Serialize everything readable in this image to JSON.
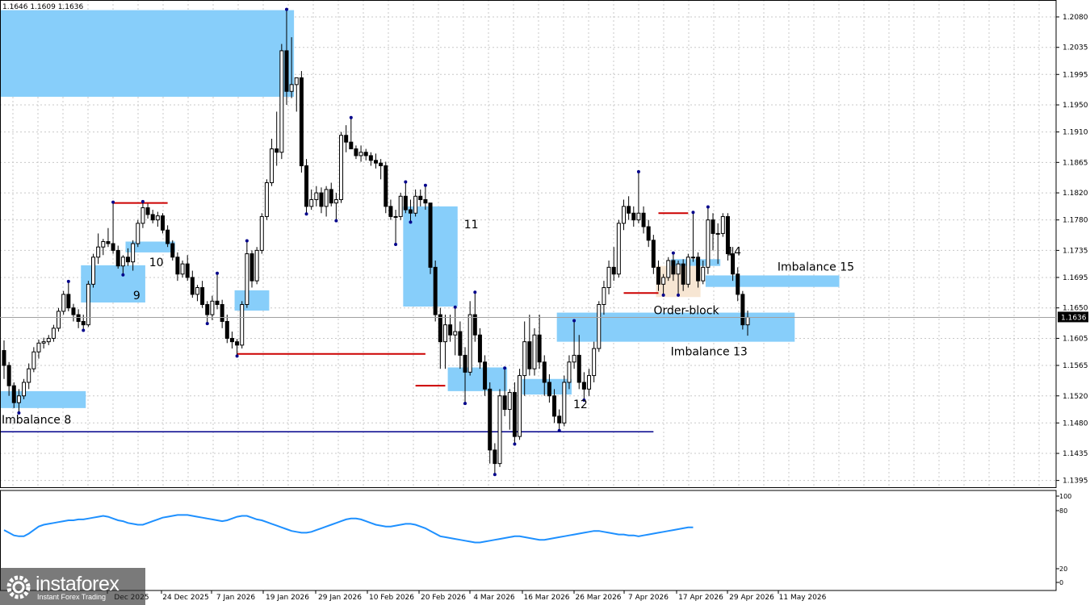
{
  "header": {
    "ohlc": "1.1646 1.1609 1.1636"
  },
  "logo": {
    "brand": "instaforex",
    "tagline": "Instant Forex Trading"
  },
  "colors": {
    "zone": "#87cefa",
    "order_block": "#f7e6d3",
    "level_red": "#cc0000",
    "level_blue": "#00008b",
    "indicator": "#1e90ff",
    "grid": "#c8c8c8"
  },
  "chart_data": {
    "type": "candlestick",
    "price_axis": {
      "ticks": [
        "1.2080",
        "1.2035",
        "1.1995",
        "1.1950",
        "1.1910",
        "1.1865",
        "1.1820",
        "1.1780",
        "1.1735",
        "1.1695",
        "1.1650",
        "1.1605",
        "1.1565",
        "1.1520",
        "1.1480",
        "1.1435",
        "1.1395"
      ],
      "current_price": "1.1636",
      "range": [
        1.1385,
        1.2105
      ]
    },
    "time_axis": {
      "ticks": [
        "Dec 2025",
        "24 Dec 2025",
        "7 Jan 2026",
        "19 Jan 2026",
        "29 Jan 2026",
        "10 Feb 2026",
        "20 Feb 2026",
        "4 Mar 2026",
        "16 Mar 2026",
        "26 Mar 2026",
        "7 Apr 2026",
        "17 Apr 2026",
        "29 Apr 2026",
        "11 May 2026"
      ]
    },
    "indicator_axis": {
      "ticks": [
        "100",
        "80",
        "20",
        "0"
      ],
      "range": [
        0,
        100
      ]
    },
    "zones": [
      {
        "label": "",
        "from": 0,
        "to": 58,
        "top": 1.209,
        "bottom": 1.1962,
        "kind": "zone"
      },
      {
        "label": "Imbalance 8",
        "from": 0,
        "to": 16,
        "top": 1.1527,
        "bottom": 1.1502,
        "kind": "zone"
      },
      {
        "label": "9",
        "from": 16,
        "to": 28,
        "top": 1.1713,
        "bottom": 1.1658,
        "kind": "zone"
      },
      {
        "label": "10",
        "from": 25,
        "to": 34,
        "top": 1.1748,
        "bottom": 1.1732,
        "kind": "zone"
      },
      {
        "label": "",
        "from": 47,
        "to": 53,
        "top": 1.1676,
        "bottom": 1.1646,
        "kind": "zone"
      },
      {
        "label": "11",
        "from": 81,
        "to": 91,
        "top": 1.18,
        "bottom": 1.1652,
        "kind": "zone"
      },
      {
        "label": "",
        "from": 90,
        "to": 101,
        "top": 1.1562,
        "bottom": 1.1527,
        "kind": "zone"
      },
      {
        "label": "12",
        "from": 105,
        "to": 114,
        "top": 1.1545,
        "bottom": 1.1522,
        "kind": "zone"
      },
      {
        "label": "Imbalance 13",
        "from": 112,
        "to": 159,
        "top": 1.1643,
        "bottom": 1.16,
        "kind": "zone"
      },
      {
        "label": "14",
        "from": 135,
        "to": 144,
        "top": 1.1722,
        "bottom": 1.1712,
        "kind": "zone"
      },
      {
        "label": "Imbalance 15",
        "from": 142,
        "to": 168,
        "top": 1.1698,
        "bottom": 1.1681,
        "kind": "zone"
      },
      {
        "label": "Order-block",
        "from": 132,
        "to": 140,
        "top": 1.1712,
        "bottom": 1.1666,
        "kind": "order_block"
      }
    ],
    "levels": [
      {
        "from": 22,
        "to": 33,
        "price": 1.1805,
        "color": "red"
      },
      {
        "from": 47,
        "to": 85,
        "price": 1.1582,
        "color": "red"
      },
      {
        "from": 83,
        "to": 89,
        "price": 1.1535,
        "color": "red"
      },
      {
        "from": 125,
        "to": 132,
        "price": 1.1672,
        "color": "red"
      },
      {
        "from": 132,
        "to": 138,
        "price": 1.179,
        "color": "red"
      },
      {
        "from": 0,
        "to": 131,
        "price": 1.1467,
        "color": "blue"
      }
    ],
    "candles": [
      [
        1.1587,
        1.1602,
        1.1545,
        1.1565
      ],
      [
        1.1565,
        1.157,
        1.152,
        1.1535
      ],
      [
        1.1535,
        1.154,
        1.1502,
        1.151
      ],
      [
        1.151,
        1.153,
        1.1496,
        1.152
      ],
      [
        1.152,
        1.1545,
        1.1515,
        1.154
      ],
      [
        1.154,
        1.1568,
        1.153,
        1.156
      ],
      [
        1.156,
        1.1592,
        1.1555,
        1.1585
      ],
      [
        1.1585,
        1.1603,
        1.1575,
        1.1598
      ],
      [
        1.1598,
        1.1606,
        1.159,
        1.16
      ],
      [
        1.16,
        1.161,
        1.1595,
        1.1605
      ],
      [
        1.1605,
        1.1625,
        1.16,
        1.162
      ],
      [
        1.162,
        1.165,
        1.1615,
        1.1645
      ],
      [
        1.1645,
        1.1675,
        1.164,
        1.167
      ],
      [
        1.167,
        1.1688,
        1.1645,
        1.165
      ],
      [
        1.165,
        1.1656,
        1.163,
        1.164
      ],
      [
        1.164,
        1.1648,
        1.162,
        1.163
      ],
      [
        1.163,
        1.164,
        1.1618,
        1.1625
      ],
      [
        1.1625,
        1.169,
        1.1622,
        1.1685
      ],
      [
        1.1685,
        1.173,
        1.168,
        1.1725
      ],
      [
        1.1725,
        1.176,
        1.1715,
        1.174
      ],
      [
        1.174,
        1.1752,
        1.1728,
        1.1748
      ],
      [
        1.1748,
        1.1768,
        1.174,
        1.1745
      ],
      [
        1.1745,
        1.1805,
        1.173,
        1.1735
      ],
      [
        1.1735,
        1.1742,
        1.1708,
        1.1712
      ],
      [
        1.1712,
        1.1728,
        1.17,
        1.1725
      ],
      [
        1.1725,
        1.1738,
        1.1712,
        1.1718
      ],
      [
        1.1718,
        1.175,
        1.1705,
        1.1745
      ],
      [
        1.1745,
        1.178,
        1.174,
        1.1775
      ],
      [
        1.1775,
        1.1806,
        1.1768,
        1.1798
      ],
      [
        1.1798,
        1.1804,
        1.1782,
        1.1788
      ],
      [
        1.1788,
        1.1795,
        1.1775,
        1.178
      ],
      [
        1.178,
        1.1792,
        1.177,
        1.1786
      ],
      [
        1.1786,
        1.179,
        1.176,
        1.1765
      ],
      [
        1.1765,
        1.1772,
        1.174,
        1.1745
      ],
      [
        1.1745,
        1.175,
        1.172,
        1.1725
      ],
      [
        1.1725,
        1.1732,
        1.169,
        1.17
      ],
      [
        1.17,
        1.172,
        1.1695,
        1.1715
      ],
      [
        1.1715,
        1.1728,
        1.169,
        1.1695
      ],
      [
        1.1695,
        1.1705,
        1.1665,
        1.167
      ],
      [
        1.167,
        1.1684,
        1.166,
        1.168
      ],
      [
        1.168,
        1.169,
        1.165,
        1.1655
      ],
      [
        1.1655,
        1.166,
        1.1628,
        1.164
      ],
      [
        1.164,
        1.1668,
        1.1632,
        1.166
      ],
      [
        1.166,
        1.17,
        1.1648,
        1.1655
      ],
      [
        1.1655,
        1.1662,
        1.162,
        1.163
      ],
      [
        1.163,
        1.164,
        1.1598,
        1.1605
      ],
      [
        1.1605,
        1.1615,
        1.159,
        1.16
      ],
      [
        1.16,
        1.1604,
        1.158,
        1.1595
      ],
      [
        1.1595,
        1.166,
        1.159,
        1.1655
      ],
      [
        1.1655,
        1.1748,
        1.165,
        1.173
      ],
      [
        1.173,
        1.1735,
        1.168,
        1.169
      ],
      [
        1.169,
        1.174,
        1.1685,
        1.1735
      ],
      [
        1.1735,
        1.179,
        1.173,
        1.1785
      ],
      [
        1.1785,
        1.184,
        1.178,
        1.1835
      ],
      [
        1.1835,
        1.19,
        1.183,
        1.1885
      ],
      [
        1.1885,
        1.194,
        1.186,
        1.188
      ],
      [
        1.188,
        1.204,
        1.187,
        1.203
      ],
      [
        1.203,
        1.209,
        1.195,
        1.197
      ],
      [
        1.197,
        1.205,
        1.196,
        1.198
      ],
      [
        1.198,
        1.199,
        1.194,
        1.199
      ],
      [
        1.199,
        1.2,
        1.185,
        1.186
      ],
      [
        1.186,
        1.187,
        1.179,
        1.18
      ],
      [
        1.18,
        1.1825,
        1.1795,
        1.181
      ],
      [
        1.181,
        1.183,
        1.18,
        1.182
      ],
      [
        1.182,
        1.1828,
        1.179,
        1.18
      ],
      [
        1.18,
        1.183,
        1.1785,
        1.1825
      ],
      [
        1.1825,
        1.1835,
        1.18,
        1.1805
      ],
      [
        1.1805,
        1.182,
        1.178,
        1.181
      ],
      [
        1.181,
        1.191,
        1.1805,
        1.1905
      ],
      [
        1.1905,
        1.192,
        1.188,
        1.1895
      ],
      [
        1.1895,
        1.193,
        1.1885,
        1.1885
      ],
      [
        1.1885,
        1.189,
        1.187,
        1.1875
      ],
      [
        1.1875,
        1.189,
        1.1866,
        1.188
      ],
      [
        1.188,
        1.1885,
        1.1868,
        1.1875
      ],
      [
        1.1875,
        1.188,
        1.186,
        1.1868
      ],
      [
        1.1868,
        1.1878,
        1.1856,
        1.1864
      ],
      [
        1.1864,
        1.187,
        1.184,
        1.186
      ],
      [
        1.186,
        1.1866,
        1.179,
        1.18
      ],
      [
        1.18,
        1.181,
        1.178,
        1.1785
      ],
      [
        1.1785,
        1.1795,
        1.1745,
        1.1785
      ],
      [
        1.1785,
        1.182,
        1.178,
        1.1815
      ],
      [
        1.1815,
        1.1835,
        1.179,
        1.1795
      ],
      [
        1.1795,
        1.181,
        1.1778,
        1.179
      ],
      [
        1.179,
        1.1825,
        1.1785,
        1.1815
      ],
      [
        1.1815,
        1.1825,
        1.18,
        1.181
      ],
      [
        1.181,
        1.183,
        1.1795,
        1.1805
      ],
      [
        1.1805,
        1.18,
        1.17,
        1.171
      ],
      [
        1.171,
        1.172,
        1.163,
        1.164
      ],
      [
        1.164,
        1.165,
        1.156,
        1.16
      ],
      [
        1.16,
        1.164,
        1.156,
        1.1625
      ],
      [
        1.1625,
        1.164,
        1.16,
        1.161
      ],
      [
        1.161,
        1.165,
        1.158,
        1.1615
      ],
      [
        1.1615,
        1.163,
        1.156,
        1.158
      ],
      [
        1.158,
        1.1592,
        1.151,
        1.1555
      ],
      [
        1.1555,
        1.166,
        1.155,
        1.164
      ],
      [
        1.164,
        1.1672,
        1.16,
        1.161
      ],
      [
        1.161,
        1.162,
        1.156,
        1.157
      ],
      [
        1.157,
        1.158,
        1.152,
        1.153
      ],
      [
        1.153,
        1.154,
        1.142,
        1.144
      ],
      [
        1.144,
        1.145,
        1.1405,
        1.142
      ],
      [
        1.142,
        1.153,
        1.1415,
        1.152
      ],
      [
        1.152,
        1.156,
        1.149,
        1.15
      ],
      [
        1.15,
        1.153,
        1.147,
        1.1525
      ],
      [
        1.1525,
        1.154,
        1.145,
        1.146
      ],
      [
        1.146,
        1.156,
        1.1455,
        1.155
      ],
      [
        1.155,
        1.163,
        1.152,
        1.16
      ],
      [
        1.16,
        1.164,
        1.155,
        1.156
      ],
      [
        1.156,
        1.162,
        1.155,
        1.161
      ],
      [
        1.161,
        1.164,
        1.156,
        1.157
      ],
      [
        1.157,
        1.158,
        1.152,
        1.154
      ],
      [
        1.154,
        1.1552,
        1.151,
        1.152
      ],
      [
        1.152,
        1.153,
        1.148,
        1.149
      ],
      [
        1.149,
        1.15,
        1.147,
        1.148
      ],
      [
        1.148,
        1.155,
        1.1475,
        1.154
      ],
      [
        1.154,
        1.158,
        1.153,
        1.157
      ],
      [
        1.157,
        1.163,
        1.156,
        1.158
      ],
      [
        1.158,
        1.161,
        1.153,
        1.154
      ],
      [
        1.154,
        1.1555,
        1.1515,
        1.153
      ],
      [
        1.153,
        1.156,
        1.152,
        1.155
      ],
      [
        1.155,
        1.16,
        1.154,
        1.159
      ],
      [
        1.159,
        1.166,
        1.1585,
        1.1655
      ],
      [
        1.1655,
        1.169,
        1.164,
        1.168
      ],
      [
        1.168,
        1.172,
        1.167,
        1.171
      ],
      [
        1.171,
        1.174,
        1.169,
        1.17
      ],
      [
        1.17,
        1.178,
        1.1695,
        1.1775
      ],
      [
        1.1775,
        1.181,
        1.1765,
        1.18
      ],
      [
        1.18,
        1.1815,
        1.178,
        1.179
      ],
      [
        1.179,
        1.18,
        1.177,
        1.178
      ],
      [
        1.178,
        1.185,
        1.1775,
        1.179
      ],
      [
        1.179,
        1.18,
        1.176,
        1.177
      ],
      [
        1.177,
        1.178,
        1.174,
        1.175
      ],
      [
        1.175,
        1.1758,
        1.17,
        1.171
      ],
      [
        1.171,
        1.172,
        1.1675,
        1.1685
      ],
      [
        1.1685,
        1.17,
        1.167,
        1.1695
      ],
      [
        1.1695,
        1.1725,
        1.169,
        1.172
      ],
      [
        1.172,
        1.173,
        1.169,
        1.17
      ],
      [
        1.17,
        1.172,
        1.167,
        1.1715
      ],
      [
        1.1715,
        1.1722,
        1.1675,
        1.1685
      ],
      [
        1.1685,
        1.173,
        1.168,
        1.1725
      ],
      [
        1.1725,
        1.179,
        1.1718,
        1.1725
      ],
      [
        1.1725,
        1.1732,
        1.168,
        1.169
      ],
      [
        1.169,
        1.172,
        1.1685,
        1.171
      ],
      [
        1.171,
        1.1798,
        1.17,
        1.178
      ],
      [
        1.178,
        1.179,
        1.1735,
        1.176
      ],
      [
        1.176,
        1.1775,
        1.1715,
        1.176
      ],
      [
        1.176,
        1.179,
        1.1755,
        1.1785
      ],
      [
        1.1785,
        1.179,
        1.172,
        1.173
      ],
      [
        1.173,
        1.174,
        1.169,
        1.17
      ],
      [
        1.17,
        1.171,
        1.166,
        1.167
      ],
      [
        1.167,
        1.1675,
        1.1618,
        1.1625
      ],
      [
        1.1625,
        1.1646,
        1.1609,
        1.1636
      ]
    ],
    "indicator": [
      59,
      56,
      53,
      52,
      52,
      55,
      59,
      63,
      65,
      66,
      67,
      68,
      69,
      70,
      70,
      71,
      71,
      72,
      73,
      74,
      75,
      74,
      72,
      70,
      69,
      67,
      66,
      65,
      65,
      67,
      69,
      71,
      73,
      74,
      75,
      76,
      76,
      76,
      75,
      74,
      73,
      72,
      71,
      70,
      69,
      70,
      72,
      74,
      75,
      75,
      73,
      71,
      70,
      68,
      66,
      64,
      62,
      60,
      58,
      57,
      56,
      56,
      57,
      59,
      61,
      63,
      65,
      67,
      69,
      71,
      72,
      72,
      71,
      69,
      67,
      65,
      64,
      63,
      63,
      64,
      65,
      66,
      66,
      65,
      63,
      61,
      58,
      55,
      52,
      51,
      50,
      49,
      48,
      47,
      46,
      45,
      45,
      46,
      47,
      48,
      49,
      50,
      51,
      52,
      52,
      51,
      50,
      49,
      48,
      48,
      49,
      50,
      51,
      52,
      53,
      54,
      55,
      56,
      57,
      58,
      58,
      57,
      56,
      55,
      54,
      54,
      53,
      53,
      52,
      53,
      54,
      55,
      56,
      57,
      58,
      59,
      60,
      61,
      62,
      62
    ]
  }
}
